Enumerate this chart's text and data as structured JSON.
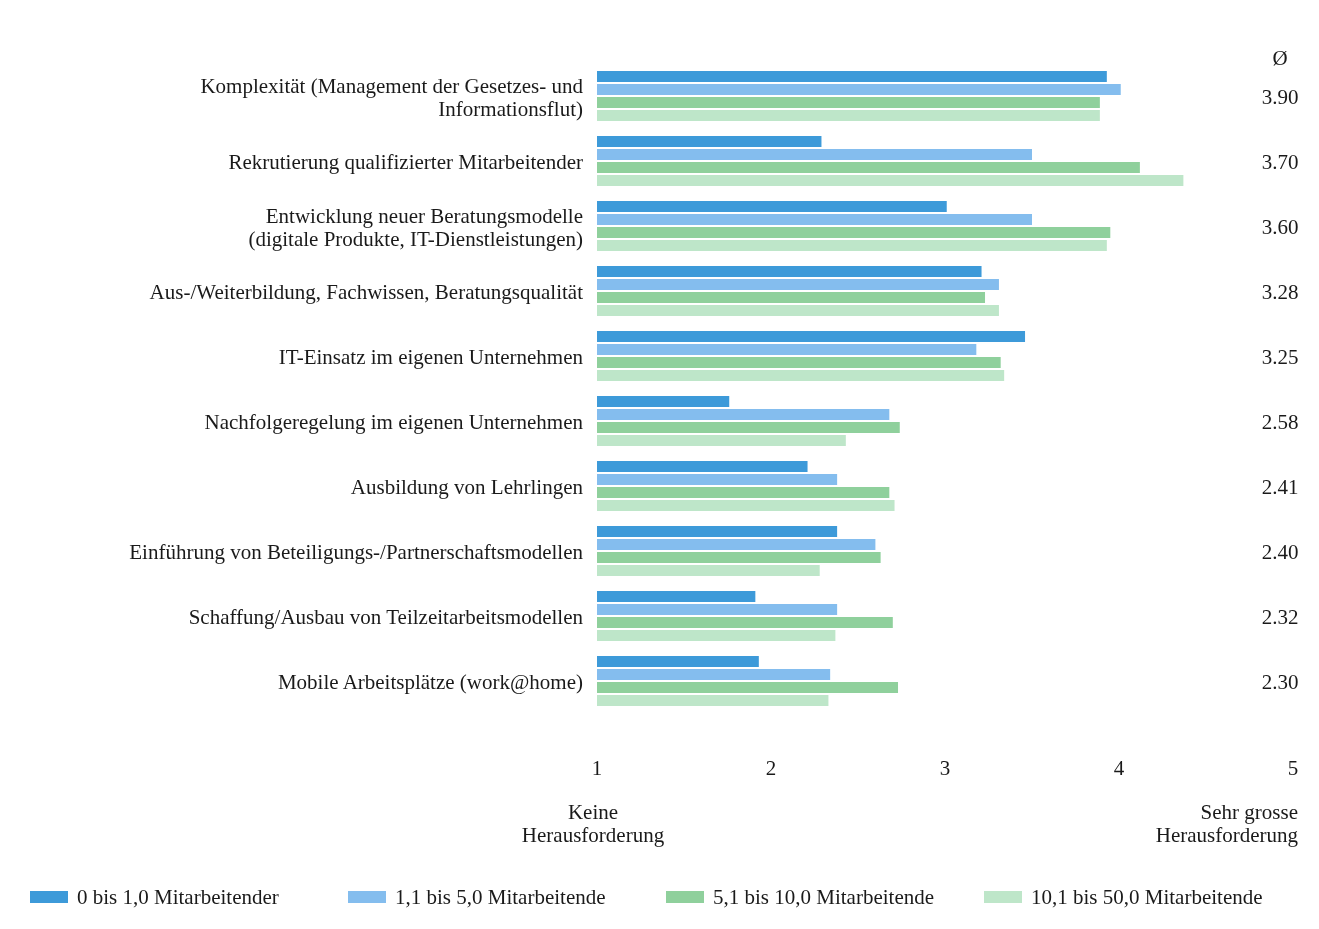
{
  "chart_data": {
    "type": "bar",
    "orientation": "horizontal",
    "categories": [
      "Komplexität (Management der Gesetzes- und Informationsflut)",
      "Rekrutierung qualifizierter Mitarbeitender",
      "Entwicklung neuer Beratungsmodelle (digitale Produkte, IT-Dienstleistungen)",
      "Aus-/Weiterbildung, Fachwissen, Beratungsqualität",
      "IT-Einsatz im eigenen Unternehmen",
      "Nachfolgeregelung im eigenen Unternehmen",
      "Ausbildung von Lehrlingen",
      "Einführung von Beteiligungs-/Partnerschaftsmodellen",
      "Schaffung/Ausbau von Teilzeitarbeitsmodellen",
      "Mobile Arbeitsplätze (work@home)"
    ],
    "series": [
      {
        "name": "0 bis 1,0 Mitarbeitender",
        "color": "#3d9ad9",
        "values": [
          3.93,
          2.29,
          3.01,
          3.21,
          3.46,
          1.76,
          2.21,
          2.38,
          1.91,
          1.93
        ]
      },
      {
        "name": "1,1 bis 5,0 Mitarbeitende",
        "color": "#84bdee",
        "values": [
          4.01,
          3.5,
          3.5,
          3.31,
          3.18,
          2.68,
          2.38,
          2.6,
          2.38,
          2.34
        ]
      },
      {
        "name": "5,1 bis 10,0 Mitarbeitende",
        "color": "#8fd09c",
        "values": [
          3.89,
          4.12,
          3.95,
          3.23,
          3.32,
          2.74,
          2.68,
          2.63,
          2.7,
          2.73
        ]
      },
      {
        "name": "10,1 bis 50,0 Mitarbeitende",
        "color": "#bee6c9",
        "values": [
          3.89,
          4.37,
          3.93,
          3.31,
          3.34,
          2.43,
          2.71,
          2.28,
          2.37,
          2.33
        ]
      }
    ],
    "xlim": [
      1,
      5
    ],
    "xticks": [
      1,
      2,
      3,
      4,
      5
    ],
    "legend": "bottom",
    "annotations": [
      "Ø",
      "3.90",
      "3.70",
      "3.60",
      "3.28",
      "3.25",
      "2.58",
      "2.41",
      "2.40",
      "2.32",
      "2.30",
      "Keine Herausforderung",
      "Sehr grosse Herausforderung"
    ]
  }
}
